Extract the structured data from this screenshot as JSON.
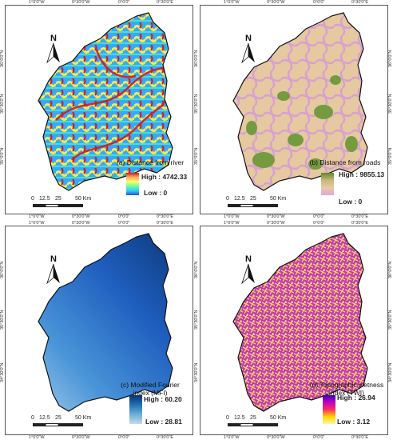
{
  "grid_labels": {
    "top_lon": [
      "1°0'0\"W",
      "0°30'0\"W",
      "0°0'0\"",
      "0°30'0\"E"
    ],
    "bottom_lon": [
      "1°0'0\"W",
      "0°30'0\"W",
      "0°0'0\"",
      "0°30'0\"E"
    ],
    "lat": [
      "36°0'0\"N",
      "35°30'0\"N",
      "35°0'0\"N",
      "34°30'0\"N"
    ]
  },
  "north_label": "N",
  "scale": {
    "ticks": [
      "0",
      "12.5",
      "25",
      "50 Km"
    ]
  },
  "panels": [
    {
      "id": "a",
      "caption": "(a) Distance from river",
      "high": "High : 4742.33",
      "low": "Low : 0",
      "ramp": [
        "#d7191c",
        "#fdae61",
        "#ffff66",
        "#66ff99",
        "#33ccff",
        "#2b4fd8"
      ]
    },
    {
      "id": "b",
      "caption": "(b) Distance from roads",
      "high": "High : 9855.13",
      "low": "Low : 0",
      "ramp": [
        "#5a8a2e",
        "#c8b87a",
        "#e8c8a8",
        "#e0a8d8"
      ]
    },
    {
      "id": "c",
      "caption": "(c) Modified Fourier index (MFI)",
      "high": "High : 60.20",
      "low": "Low : 28.81",
      "ramp": [
        "#08306b",
        "#2171b5",
        "#6baed6",
        "#c6dbef"
      ]
    },
    {
      "id": "d",
      "caption": "(d) Topographic wetness index (TWI)",
      "high": "High : 26.94",
      "low": "Low : 3.12",
      "ramp": [
        "#3a00c0",
        "#c000c0",
        "#ff3060",
        "#ffd800",
        "#fff6a0"
      ]
    }
  ]
}
